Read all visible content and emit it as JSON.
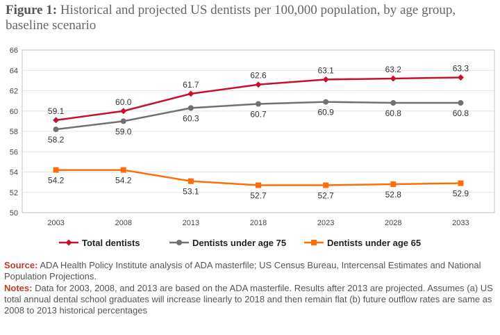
{
  "title": {
    "prefix": "Figure 1:",
    "text": "Historical and projected US dentists per 100,000 population, by age group, baseline scenario"
  },
  "colors": {
    "total": "#c8102e",
    "under75": "#707070",
    "under65": "#ff6d0a",
    "grid": "#e3e3e3"
  },
  "chart_data": {
    "type": "line",
    "title": "Historical and projected US dentists per 100,000 population, by age group, baseline scenario",
    "xlabel": "",
    "ylabel": "",
    "x": [
      "2003",
      "2008",
      "2013",
      "2018",
      "2023",
      "2028",
      "2033"
    ],
    "ylim": [
      50,
      66
    ],
    "yticks": [
      50,
      52,
      54,
      56,
      58,
      60,
      62,
      64,
      66
    ],
    "grid": true,
    "legend_position": "bottom",
    "series": [
      {
        "name": "Total dentists",
        "marker": "diamond",
        "values": [
          59.1,
          60.0,
          61.7,
          62.6,
          63.1,
          63.2,
          63.3
        ],
        "labels": [
          "59.1",
          "60.0",
          "61.7",
          "62.6",
          "63.1",
          "63.2",
          "63.3"
        ],
        "label_position": "above"
      },
      {
        "name": "Dentists under age 75",
        "marker": "circle",
        "values": [
          58.2,
          59.0,
          60.3,
          60.7,
          60.9,
          60.8,
          60.8
        ],
        "labels": [
          "58.2",
          "59.0",
          "60.3",
          "60.7",
          "60.9",
          "60.8",
          "60.8"
        ],
        "label_position": "below"
      },
      {
        "name": "Dentists under age 65",
        "marker": "square",
        "values": [
          54.2,
          54.2,
          53.1,
          52.7,
          52.7,
          52.8,
          52.9
        ],
        "labels": [
          "54.2",
          "54.2",
          "53.1",
          "52.7",
          "52.7",
          "52.8",
          "52.9"
        ],
        "label_position": "below"
      }
    ]
  },
  "notes": {
    "source_label": "Source:",
    "source_text": "ADA Health Policy Institute analysis of ADA masterfile; US Census Bureau, Intercensal Estimates and National Population Projections.",
    "notes_label": "Notes:",
    "notes_text": "Data for 2003, 2008, and 2013 are based on the ADA masterfile. Results after 2013 are projected. Assumes (a) US total annual dental school graduates will increase linearly to 2018 and then remain flat (b) future outflow rates are same as 2008 to 2013 historical percentages"
  }
}
